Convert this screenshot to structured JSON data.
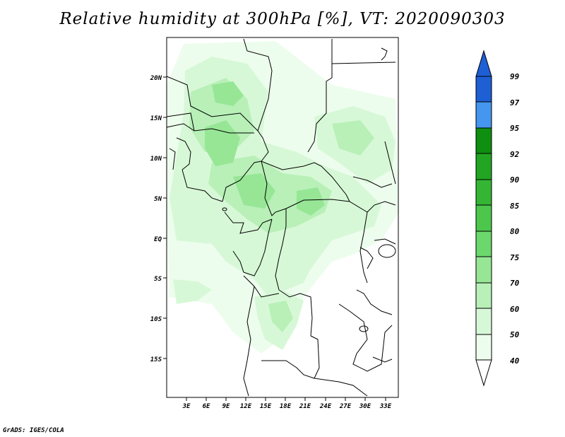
{
  "title": "Relative humidity at 300hPa [%], VT: 2020090303",
  "credit": "GrADS: IGES/COLA",
  "map": {
    "lat_labels": [
      "20N",
      "15N",
      "10N",
      "5N",
      "EQ",
      "5S",
      "10S",
      "15S"
    ],
    "lon_labels": [
      "3E",
      "6E",
      "9E",
      "12E",
      "15E",
      "18E",
      "21E",
      "24E",
      "27E",
      "30E",
      "33E"
    ]
  },
  "colorbar": {
    "labels": [
      "99",
      "97",
      "95",
      "92",
      "90",
      "85",
      "80",
      "75",
      "70",
      "60",
      "50",
      "40"
    ],
    "colors": [
      "#1e5fd6",
      "#2a7ae6",
      "#4596ee",
      "#0f8f0f",
      "#22a522",
      "#34b634",
      "#4cc74c",
      "#6bd86b",
      "#96e696",
      "#b8f0b8",
      "#d7f8d7",
      "#edfded"
    ]
  },
  "colors": {
    "shade_light": "#d7f8d7",
    "shade_mid": "#b8f0b8",
    "shade_dark": "#96e696",
    "border": "#000000"
  }
}
